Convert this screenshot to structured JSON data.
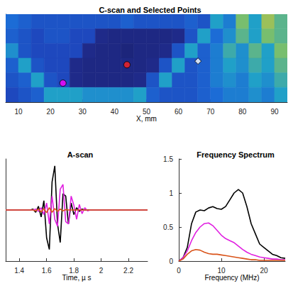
{
  "chart_data": [
    {
      "type": "heatmap",
      "title": "C-scan and Selected Points",
      "xlabel": "X, mm",
      "x": [
        8,
        12,
        16,
        20,
        24,
        28,
        32,
        36,
        40,
        44,
        48,
        52,
        56,
        60,
        64,
        68,
        72,
        76,
        80,
        84,
        88,
        92
      ],
      "y": [
        22,
        18,
        14,
        10,
        6,
        2
      ],
      "cells": [
        [
          0.45,
          0.4,
          0.35,
          0.35,
          0.35,
          0.35,
          0.35,
          0.35,
          0.35,
          0.4,
          0.35,
          0.35,
          0.35,
          0.35,
          0.4,
          0.35,
          0.6,
          0.5,
          0.75,
          0.6,
          0.8,
          0.7
        ],
        [
          0.4,
          0.35,
          0.3,
          0.35,
          0.35,
          0.3,
          0.3,
          0.1,
          0.08,
          0.08,
          0.08,
          0.08,
          0.08,
          0.1,
          0.35,
          0.6,
          0.45,
          0.55,
          0.7,
          0.6,
          0.75,
          0.7
        ],
        [
          0.55,
          0.35,
          0.3,
          0.3,
          0.3,
          0.3,
          0.1,
          0.08,
          0.08,
          0.05,
          0.08,
          0.08,
          0.1,
          0.35,
          0.6,
          0.4,
          0.5,
          0.65,
          0.55,
          0.7,
          0.6,
          0.75
        ],
        [
          0.4,
          0.6,
          0.35,
          0.3,
          0.3,
          0.1,
          0.08,
          0.08,
          0.08,
          0.08,
          0.08,
          0.1,
          0.35,
          0.6,
          0.35,
          0.4,
          0.5,
          0.6,
          0.55,
          0.65,
          0.6,
          0.7
        ],
        [
          0.35,
          0.4,
          0.6,
          0.35,
          0.3,
          0.1,
          0.08,
          0.08,
          0.08,
          0.08,
          0.1,
          0.35,
          0.6,
          0.35,
          0.35,
          0.4,
          0.5,
          0.55,
          0.5,
          0.6,
          0.55,
          0.65
        ],
        [
          0.3,
          0.35,
          0.4,
          0.6,
          0.6,
          0.6,
          0.55,
          0.55,
          0.55,
          0.55,
          0.6,
          0.4,
          0.35,
          0.35,
          0.35,
          0.4,
          0.45,
          0.5,
          0.5,
          0.55,
          0.5,
          0.6
        ]
      ],
      "clim": [
        0,
        1
      ],
      "xlim": [
        6,
        94
      ],
      "xticks": [
        10,
        20,
        30,
        40,
        50,
        60,
        70,
        80,
        90
      ],
      "ylim": [
        0,
        24
      ],
      "tick_labels": "x",
      "grid": false,
      "points": [
        {
          "x": 23.9,
          "y": 5.2,
          "color": "#ff00ff",
          "marker": "circle"
        },
        {
          "x": 43.9,
          "y": 10.2,
          "color": "#ff2020",
          "marker": "circle"
        },
        {
          "x": 66.1,
          "y": 11.2,
          "color": "#ffffff",
          "marker": "diamond"
        }
      ]
    },
    {
      "type": "line",
      "title": "A-scan",
      "xlabel": "Time, µ s",
      "x": [
        1.3,
        1.4,
        1.48,
        1.5,
        1.52,
        1.54,
        1.56,
        1.58,
        1.6,
        1.62,
        1.64,
        1.66,
        1.68,
        1.7,
        1.72,
        1.74,
        1.76,
        1.78,
        1.8,
        1.82,
        1.84,
        1.86,
        1.88,
        1.9,
        1.92,
        2,
        2.1,
        2.2,
        2.34
      ],
      "series": [
        {
          "color": "#000000",
          "values": [
            0,
            0,
            0,
            0.02,
            -0.05,
            0.08,
            -0.15,
            0.2,
            -0.6,
            -0.85,
            0.6,
            0.95,
            -0.3,
            -0.7,
            0.35,
            0.3,
            -0.3,
            0.15,
            -0.1,
            0.05,
            -0.03,
            0.02,
            0,
            0,
            0,
            0,
            0,
            0,
            0
          ]
        },
        {
          "color": "#e020e0",
          "values": [
            0,
            0,
            0,
            0,
            0.02,
            -0.03,
            0.05,
            -0.1,
            0.15,
            -0.3,
            0.3,
            -0.2,
            -0.35,
            0.45,
            0.55,
            -0.25,
            -0.3,
            0.3,
            0.1,
            -0.2,
            0.12,
            -0.08,
            0.05,
            -0.02,
            0,
            0,
            0,
            0,
            0
          ]
        },
        {
          "color": "#d95319",
          "values": [
            0,
            0,
            0,
            0,
            -0.02,
            0.02,
            -0.04,
            0.03,
            -0.06,
            0.05,
            -0.05,
            0.03,
            -0.03,
            0.02,
            -0.02,
            0.01,
            0,
            0,
            0,
            0,
            0,
            0,
            0,
            0,
            0,
            0,
            0,
            0,
            0
          ]
        }
      ],
      "xlim": [
        1.3,
        2.34
      ],
      "xticks": [
        1.4,
        1.6,
        1.8,
        2,
        2.2
      ],
      "ylim": [
        -1.1,
        1.1
      ],
      "tick_labels": "x",
      "grid": false
    },
    {
      "type": "line",
      "title": "Frequency Spectrum",
      "xlabel": "Frequency (MHz)",
      "x": [
        0,
        1,
        2,
        3,
        4,
        5,
        6,
        7,
        8,
        9,
        10,
        11,
        12,
        13,
        14,
        15,
        16,
        17,
        18,
        19,
        20,
        21,
        22,
        23,
        24,
        25
      ],
      "series": [
        {
          "color": "#000000",
          "values": [
            0,
            0.05,
            0.2,
            0.55,
            0.72,
            0.75,
            0.74,
            0.78,
            0.8,
            0.77,
            0.76,
            0.8,
            0.9,
            1,
            1.05,
            1,
            0.8,
            0.55,
            0.4,
            0.25,
            0.2,
            0.15,
            0.1,
            0.08,
            0.05,
            0.04
          ]
        },
        {
          "color": "#e020e0",
          "values": [
            0,
            0.05,
            0.15,
            0.3,
            0.42,
            0.5,
            0.55,
            0.56,
            0.52,
            0.45,
            0.38,
            0.33,
            0.3,
            0.27,
            0.22,
            0.17,
            0.13,
            0.1,
            0.08,
            0.06,
            0.05,
            0.04,
            0.03,
            0.03,
            0.02,
            0.02
          ]
        },
        {
          "color": "#d95319",
          "values": [
            0,
            0.03,
            0.1,
            0.15,
            0.17,
            0.16,
            0.13,
            0.11,
            0.1,
            0.1,
            0.09,
            0.08,
            0.07,
            0.06,
            0.05,
            0.04,
            0.03,
            0.02,
            0.02,
            0.01,
            0.01,
            0.01,
            0.01,
            0.01,
            0.01,
            0.01
          ]
        }
      ],
      "xlim": [
        0,
        25
      ],
      "xticks": [
        0,
        10,
        20
      ],
      "ylim": [
        0,
        1.5
      ],
      "yticks": [
        0,
        0.5,
        1,
        1.5
      ],
      "grid": false
    }
  ]
}
